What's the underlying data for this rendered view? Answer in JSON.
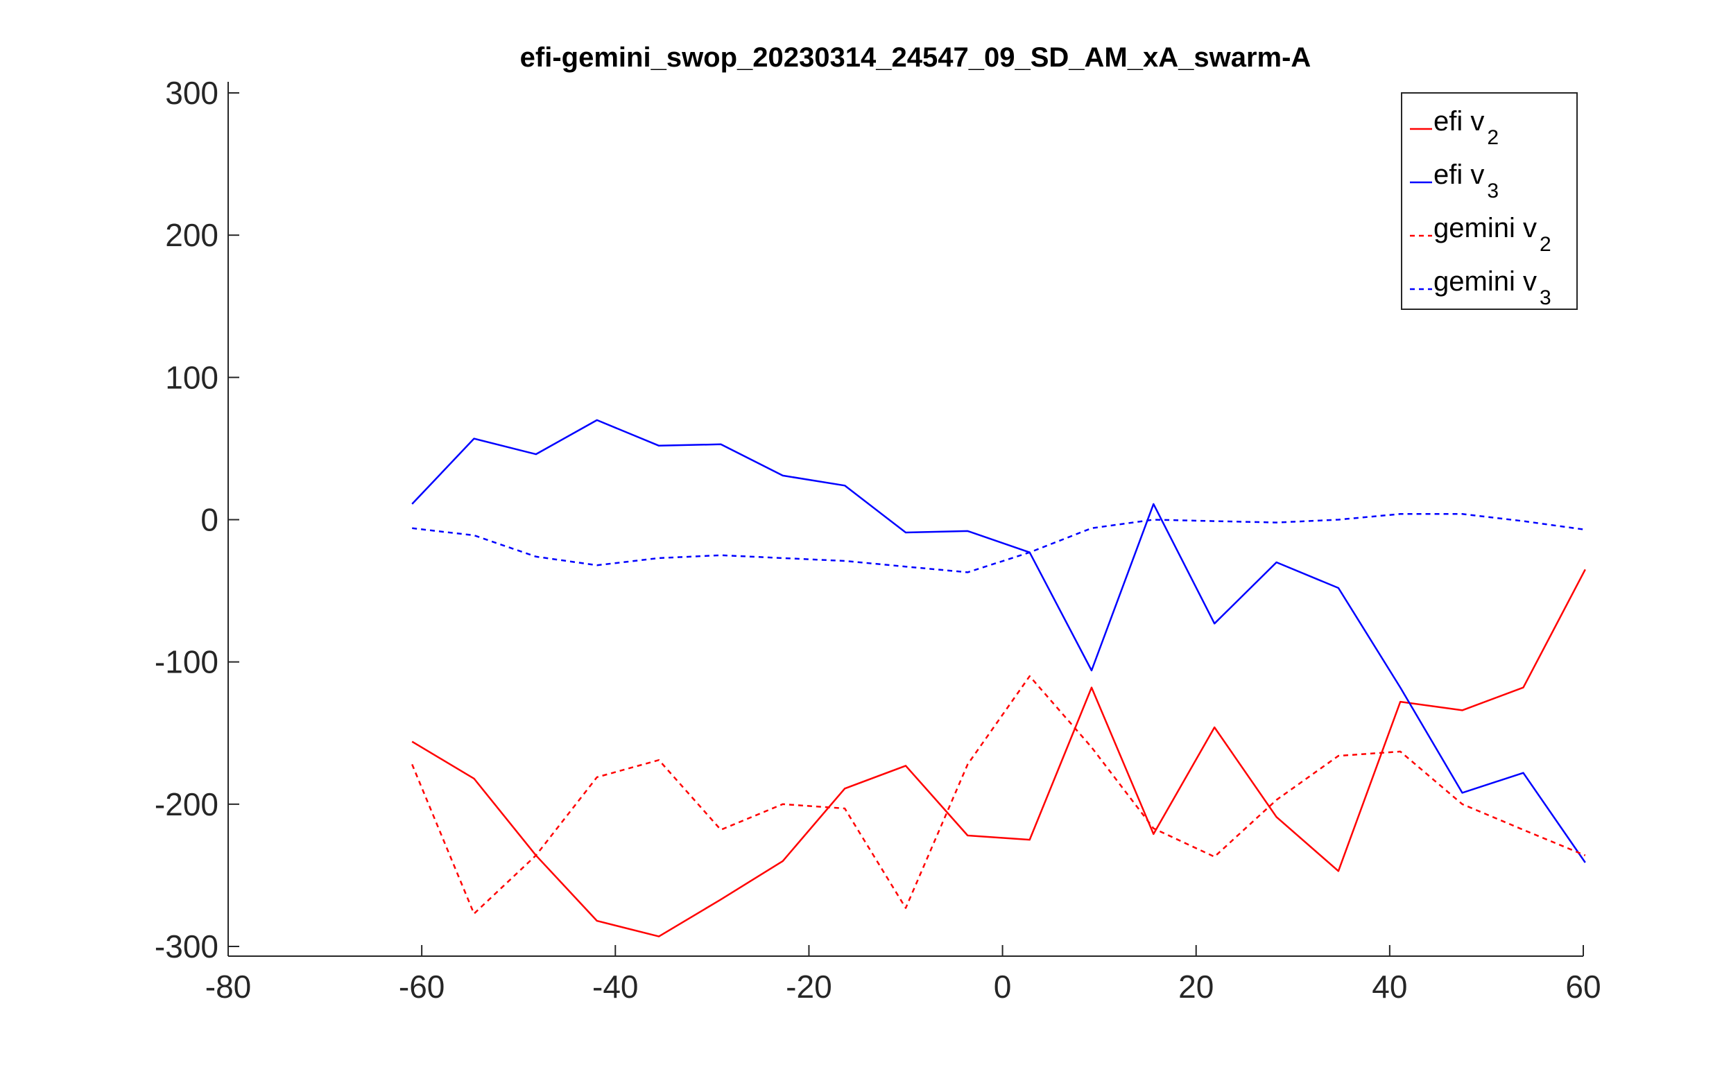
{
  "chart_data": {
    "type": "line",
    "title": "efi-gemini_swop_20230314_24547_09_SD_AM_xA_swarm-A",
    "xlabel": "",
    "ylabel": "",
    "xlim": [
      -80,
      60
    ],
    "ylim": [
      -300,
      300
    ],
    "xticks": [
      -80,
      -60,
      -40,
      -20,
      0,
      20,
      40,
      60
    ],
    "yticks": [
      300,
      200,
      100,
      0,
      -100,
      -200,
      -300
    ],
    "grid": false,
    "legend_position": "top-right",
    "x": [
      -61,
      -54.6,
      -48.2,
      -41.9,
      -35.5,
      -29.1,
      -22.7,
      -16.3,
      -10,
      -3.6,
      2.8,
      9.2,
      15.6,
      21.9,
      28.3,
      34.7,
      41.1,
      47.5,
      53.8,
      60.2
    ],
    "series": [
      {
        "name_base": "efi v",
        "name_sub": "2",
        "color": "#ff0000",
        "style": "solid",
        "values": [
          -156,
          -182,
          -236,
          -282,
          -293,
          -267,
          -240,
          -189,
          -173,
          -222,
          -225,
          -118,
          -221,
          -146,
          -209,
          -247,
          -128,
          -134,
          -118,
          -35
        ]
      },
      {
        "name_base": "efi v",
        "name_sub": "3",
        "color": "#0000ff",
        "style": "solid",
        "values": [
          11,
          57,
          46,
          70,
          52,
          53,
          31,
          24,
          -9,
          -8,
          -23,
          -106,
          11,
          -73,
          -30,
          -48,
          -118,
          -192,
          -178,
          -241
        ]
      },
      {
        "name_base": "gemini v",
        "name_sub": "2",
        "color": "#ff0000",
        "style": "dashed",
        "values": [
          -172,
          -277,
          -236,
          -181,
          -169,
          -218,
          -200,
          -203,
          -273,
          -172,
          -110,
          -160,
          -217,
          -237,
          -197,
          -166,
          -163,
          -200,
          -218,
          -236
        ]
      },
      {
        "name_base": "gemini v",
        "name_sub": "3",
        "color": "#0000ff",
        "style": "dashed",
        "values": [
          -6,
          -11,
          -26,
          -32,
          -27,
          -25,
          -27,
          -29,
          -33,
          -37,
          -23,
          -6,
          0,
          -1,
          -2,
          0,
          4,
          4,
          -1,
          -7
        ]
      }
    ]
  }
}
